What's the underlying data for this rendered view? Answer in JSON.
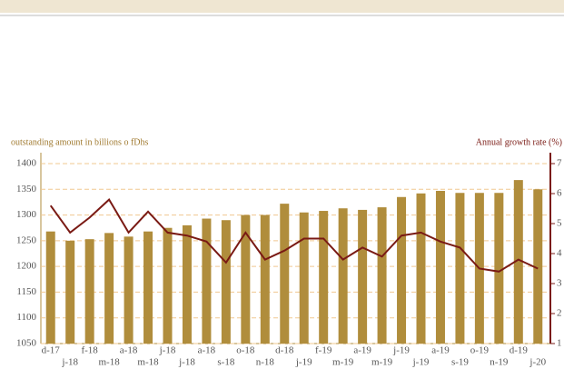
{
  "chart_data": {
    "type": "bar_line",
    "y_label": "outstanding amount in billions o fDhs",
    "y2_label": "Annual growth rate (%)",
    "categories": [
      "d-17",
      "j-18",
      "f-18",
      "m-18",
      "a-18",
      "m-18",
      "j-18",
      "j-18",
      "a-18",
      "s-18",
      "o-18",
      "n-18",
      "d-18",
      "j-19",
      "f-19",
      "m-19",
      "a-19",
      "m-19",
      "j-19",
      "j-19",
      "a-19",
      "s-19",
      "o-19",
      "n-19",
      "d-19",
      "j-20"
    ],
    "series": [
      {
        "type": "bar",
        "color": "#b08d3c",
        "values": [
          1268,
          1250,
          1253,
          1265,
          1258,
          1268,
          1275,
          1280,
          1293,
          1290,
          1300,
          1300,
          1322,
          1305,
          1308,
          1313,
          1310,
          1315,
          1335,
          1342,
          1347,
          1343,
          1343,
          1343,
          1368,
          1350
        ]
      },
      {
        "type": "line",
        "axis": "y2",
        "color": "#7a1a14",
        "values": [
          5.6,
          4.7,
          5.2,
          5.8,
          4.7,
          5.4,
          4.7,
          4.6,
          4.4,
          3.7,
          4.7,
          3.8,
          4.1,
          4.5,
          4.5,
          3.8,
          4.2,
          3.9,
          4.6,
          4.7,
          4.4,
          4.2,
          3.5,
          3.4,
          3.8,
          3.5
        ]
      }
    ],
    "ylim": [
      1050,
      1400
    ],
    "yticks": [
      1050,
      1100,
      1150,
      1200,
      1250,
      1300,
      1350,
      1400
    ],
    "y2lim": [
      1,
      7
    ],
    "y2ticks": [
      1,
      2,
      3,
      4,
      5,
      6,
      7
    ],
    "grid": true
  }
}
